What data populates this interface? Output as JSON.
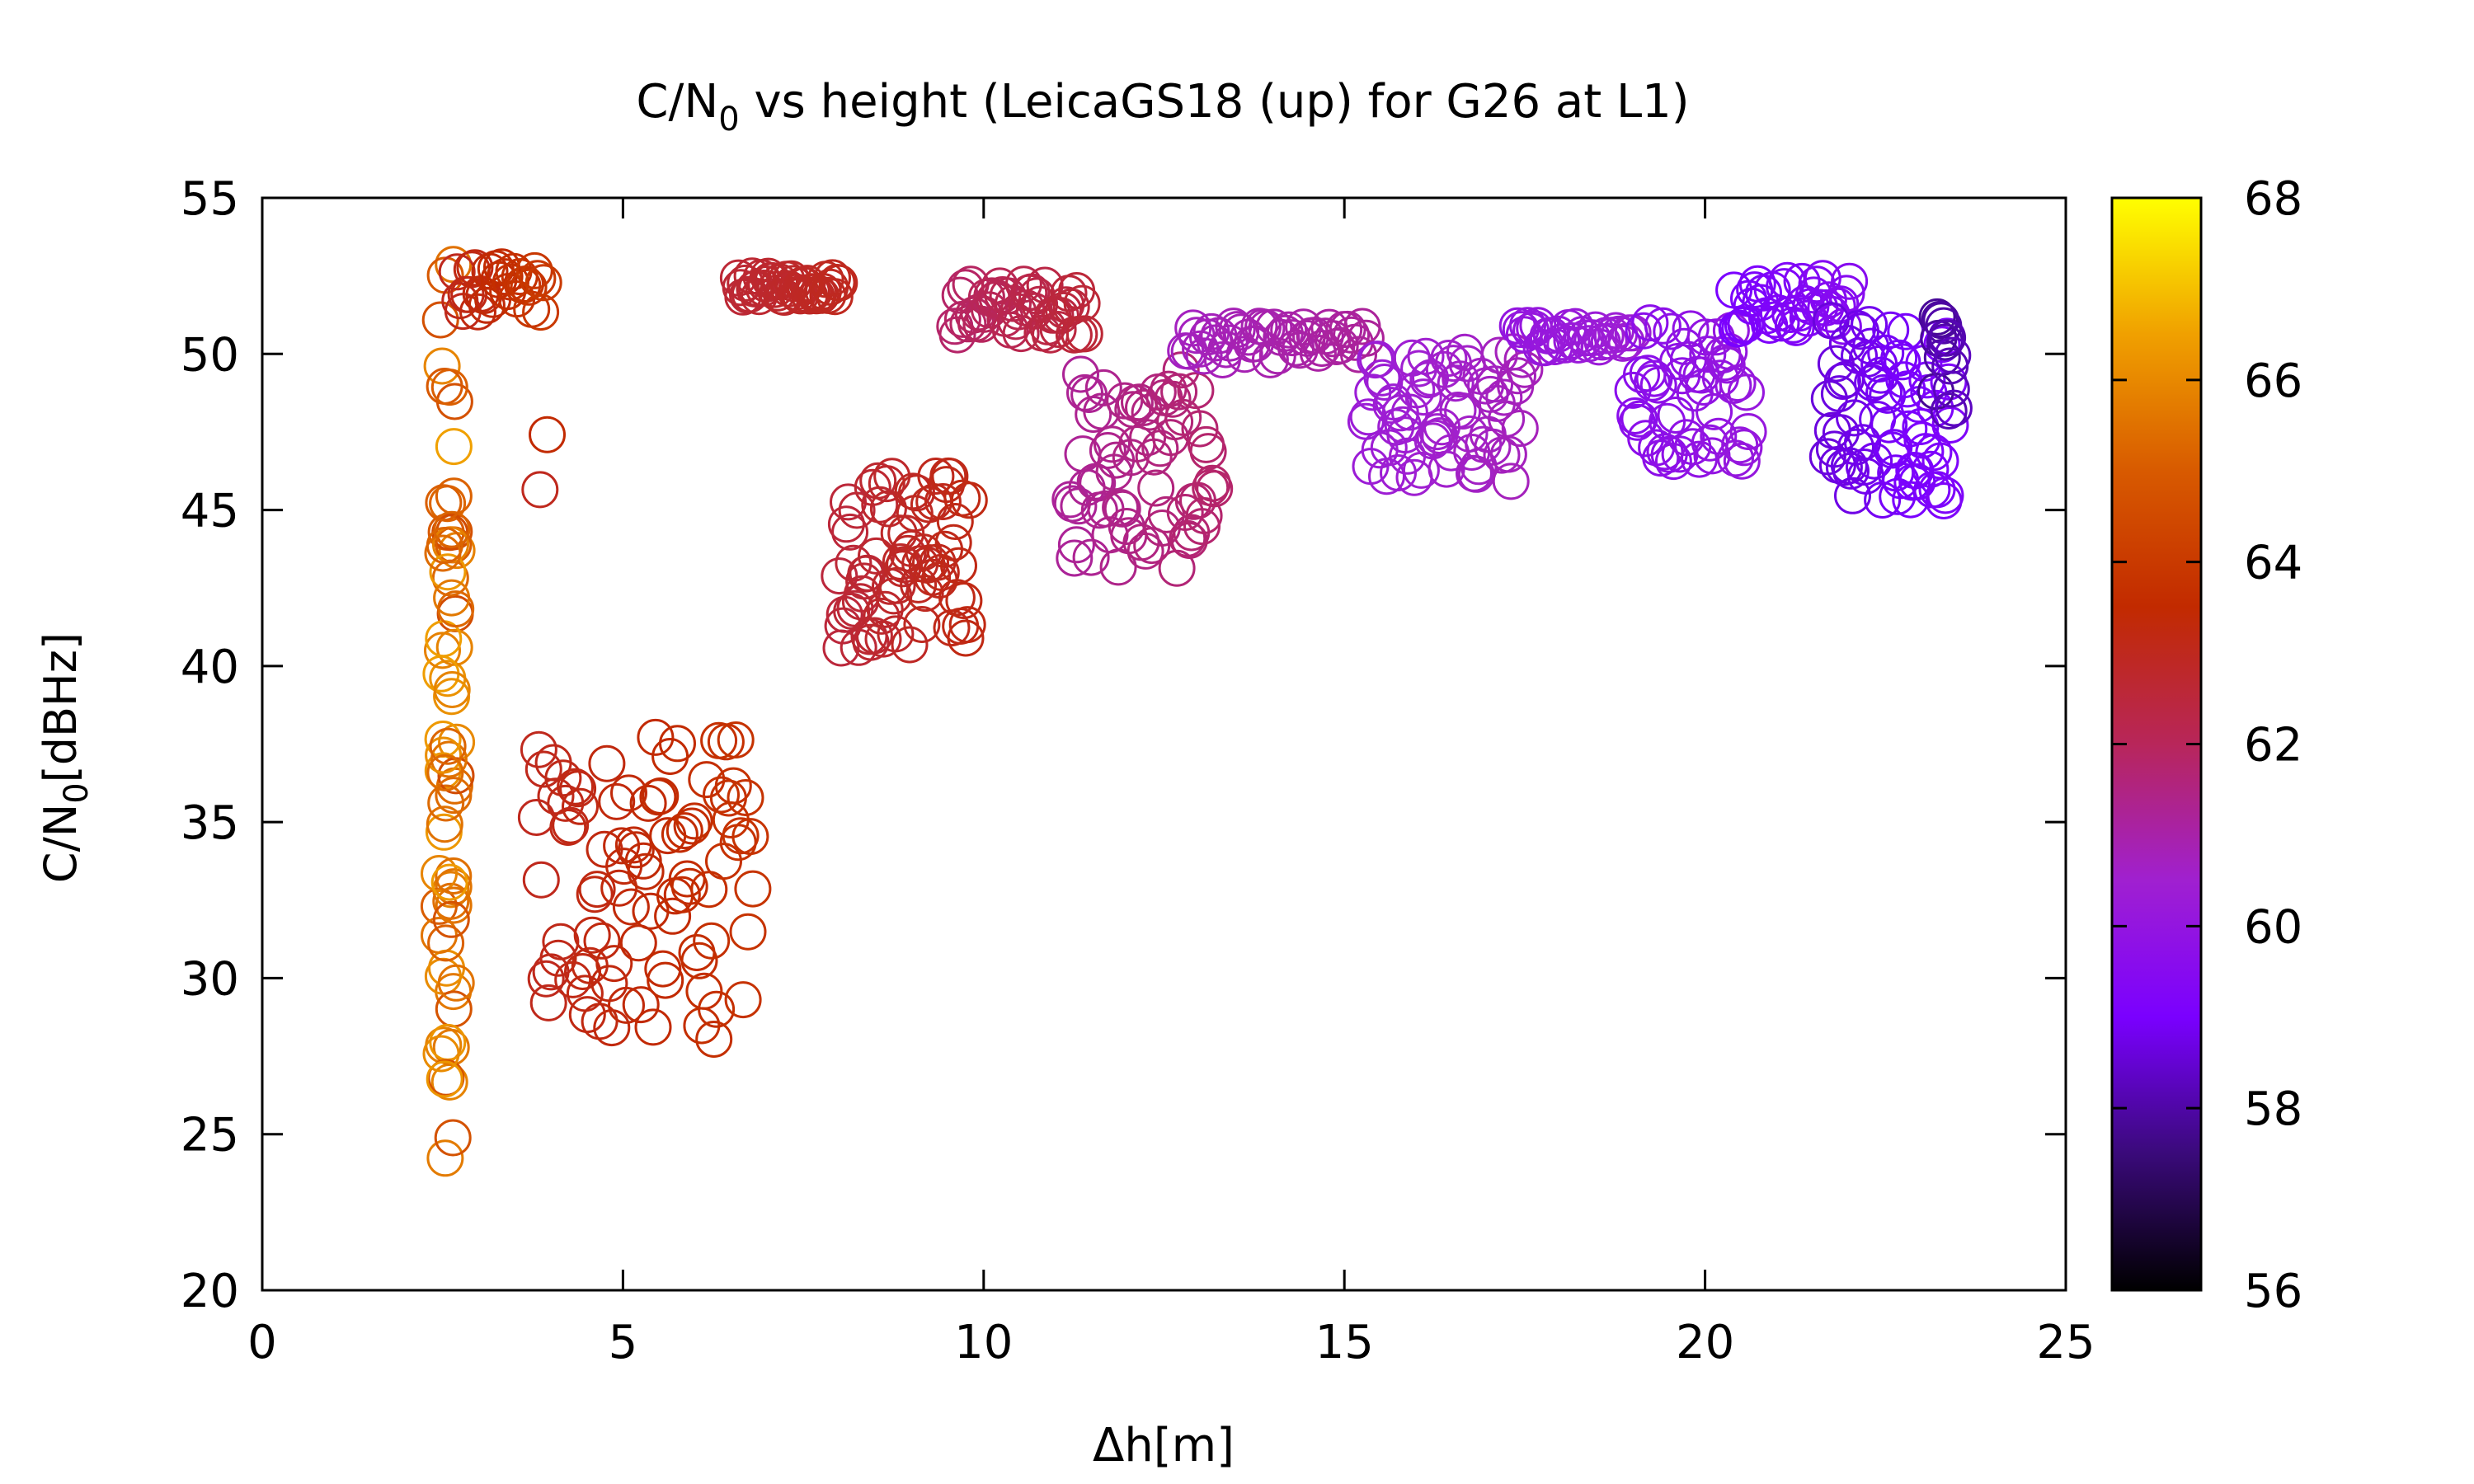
{
  "chart_data": {
    "type": "scatter",
    "title": {
      "main": "C/N",
      "sub": "0",
      "rest": " vs height (LeicaGS18 (up) for G26 at L1)"
    },
    "xlabel": "Δh[m]",
    "ylabel": {
      "main": "C/N",
      "sub": "0",
      "rest": "[dBHz]"
    },
    "xlim": [
      0,
      25
    ],
    "ylim": [
      20,
      55
    ],
    "x_ticks": [
      0,
      5,
      10,
      15,
      20,
      25
    ],
    "y_ticks": [
      20,
      25,
      30,
      35,
      40,
      45,
      50,
      55
    ],
    "grid": false,
    "marker": "open-circle",
    "colorbar": {
      "range": [
        56,
        68
      ],
      "ticks": [
        56,
        58,
        60,
        62,
        64,
        66,
        68
      ],
      "palette": [
        "#000000",
        "#3a0a7a",
        "#7a00ff",
        "#a020d0",
        "#b8265a",
        "#c22a00",
        "#d85a00",
        "#f0a000",
        "#ffff00"
      ]
    },
    "clusters": [
      {
        "x": [
          2.45,
          2.7
        ],
        "y": [
          24,
          53
        ],
        "c": [
          64.5,
          66.5
        ],
        "n": 70,
        "vertical": true
      },
      {
        "x": [
          2.7,
          3.9
        ],
        "y": [
          51.3,
          52.8
        ],
        "c": [
          63,
          64
        ],
        "n": 30
      },
      {
        "x": [
          3.85,
          3.95
        ],
        "y": [
          44.7,
          48
        ],
        "c": [
          63,
          63.5
        ],
        "n": 2
      },
      {
        "x": [
          3.8,
          6.8
        ],
        "y": [
          28,
          37.8
        ],
        "c": [
          63,
          63.8
        ],
        "n": 90
      },
      {
        "x": [
          6.6,
          8.0
        ],
        "y": [
          51.8,
          52.5
        ],
        "c": [
          62.6,
          63
        ],
        "n": 45
      },
      {
        "x": [
          8.0,
          9.8
        ],
        "y": [
          40.5,
          46.3
        ],
        "c": [
          62.5,
          63.2
        ],
        "n": 75
      },
      {
        "x": [
          9.6,
          11.4
        ],
        "y": [
          50.6,
          52.3
        ],
        "c": [
          61.8,
          62.6
        ],
        "n": 50
      },
      {
        "x": [
          11.2,
          13.2
        ],
        "y": [
          43,
          49.5
        ],
        "c": [
          61.2,
          61.8
        ],
        "n": 70
      },
      {
        "x": [
          12.8,
          15.3
        ],
        "y": [
          49.8,
          50.9
        ],
        "c": [
          60.7,
          61.2
        ],
        "n": 50
      },
      {
        "x": [
          15.3,
          17.5
        ],
        "y": [
          45.8,
          50.2
        ],
        "c": [
          60.3,
          60.8
        ],
        "n": 70
      },
      {
        "x": [
          17.4,
          19.0
        ],
        "y": [
          50.2,
          51.0
        ],
        "c": [
          60.0,
          60.4
        ],
        "n": 35
      },
      {
        "x": [
          19.0,
          20.6
        ],
        "y": [
          46.5,
          51.3
        ],
        "c": [
          59.6,
          60.1
        ],
        "n": 55
      },
      {
        "x": [
          20.4,
          22.0
        ],
        "y": [
          50.8,
          52.5
        ],
        "c": [
          59.0,
          59.5
        ],
        "n": 40
      },
      {
        "x": [
          21.7,
          23.4
        ],
        "y": [
          45.2,
          51.2
        ],
        "c": [
          58.6,
          59.2
        ],
        "n": 75
      },
      {
        "x": [
          23.2,
          23.45
        ],
        "y": [
          48,
          51.2
        ],
        "c": [
          57.8,
          58.3
        ],
        "n": 15
      }
    ]
  }
}
